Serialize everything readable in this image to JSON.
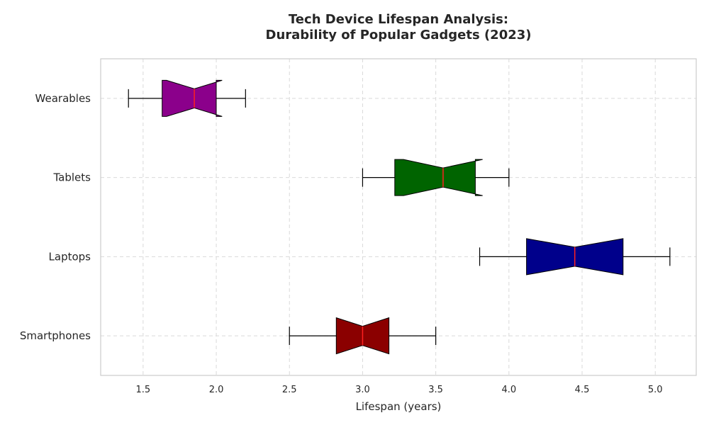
{
  "chart_data": {
    "type": "boxplot",
    "orientation": "horizontal",
    "notched": true,
    "title": "Tech Device Lifespan Analysis:\nDurability of Popular Gadgets (2023)",
    "xlabel": "Lifespan (years)",
    "ylabel": "",
    "xlim": [
      1.21,
      5.28
    ],
    "xticks": [
      1.5,
      2.0,
      2.5,
      3.0,
      3.5,
      4.0,
      4.5,
      5.0
    ],
    "xtick_labels": [
      "1.5",
      "2.0",
      "2.5",
      "3.0",
      "3.5",
      "4.0",
      "4.5",
      "5.0"
    ],
    "grid": true,
    "categories": [
      "Smartphones",
      "Laptops",
      "Tablets",
      "Wearables"
    ],
    "series": [
      {
        "category": "Smartphones",
        "whisker_low": 2.5,
        "q1": 2.82,
        "median": 3.0,
        "q3": 3.18,
        "whisker_high": 3.5,
        "notch_low": 2.82,
        "notch_high": 3.18,
        "color": "#8b0000"
      },
      {
        "category": "Laptops",
        "whisker_low": 3.8,
        "q1": 4.12,
        "median": 4.45,
        "q3": 4.78,
        "whisker_high": 5.1,
        "notch_low": 4.12,
        "notch_high": 4.78,
        "color": "#00008b"
      },
      {
        "category": "Tablets",
        "whisker_low": 3.0,
        "q1": 3.22,
        "median": 3.55,
        "q3": 3.77,
        "whisker_high": 4.0,
        "notch_low": 3.28,
        "notch_high": 3.82,
        "color": "#006400"
      },
      {
        "category": "Wearables",
        "whisker_low": 1.4,
        "q1": 1.63,
        "median": 1.85,
        "q3": 2.0,
        "whisker_high": 2.2,
        "notch_low": 1.66,
        "notch_high": 2.04,
        "color": "#8b008b"
      }
    ]
  }
}
